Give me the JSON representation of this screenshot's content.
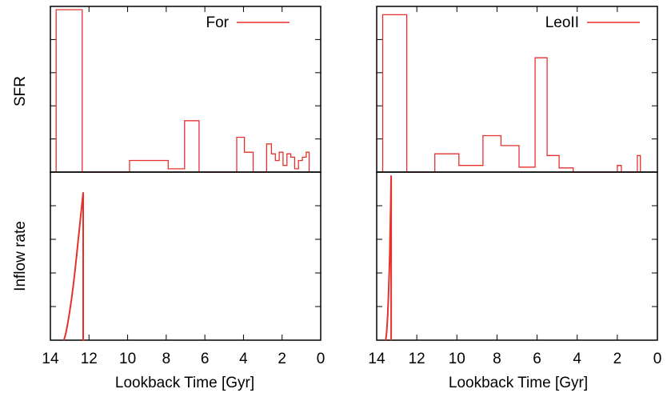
{
  "chart_data": [
    {
      "type": "line",
      "panel": "For SFR",
      "legend": "For",
      "legend_position": "top-right",
      "ylabel": "SFR",
      "xlim": [
        14,
        0
      ],
      "x_reversed": true,
      "y_tick_labels_shown": false,
      "ylim": [
        0,
        1
      ],
      "color": "#e8302b",
      "x": [
        13.7,
        13.7,
        12.35,
        12.35,
        9.9,
        9.9,
        7.9,
        7.9,
        7.05,
        7.05,
        6.3,
        6.3,
        4.35,
        4.35,
        3.95,
        3.95,
        3.5,
        3.5,
        2.8,
        2.8,
        2.55,
        2.55,
        2.35,
        2.35,
        2.15,
        2.15,
        1.95,
        1.95,
        1.75,
        1.75,
        1.55,
        1.55,
        1.35,
        1.35,
        1.15,
        1.15,
        0.95,
        0.95,
        0.75,
        0.75,
        0.6,
        0.6
      ],
      "y": [
        0,
        0.98,
        0.98,
        0,
        0,
        0.07,
        0.07,
        0.02,
        0.02,
        0.31,
        0.31,
        0,
        0,
        0.21,
        0.21,
        0.12,
        0.12,
        0,
        0,
        0.17,
        0.17,
        0.11,
        0.11,
        0.07,
        0.07,
        0.12,
        0.12,
        0.04,
        0.04,
        0.11,
        0.11,
        0.09,
        0.09,
        0.02,
        0.02,
        0.07,
        0.07,
        0.09,
        0.09,
        0.12,
        0.12,
        0
      ]
    },
    {
      "type": "line",
      "panel": "LeoII SFR",
      "legend": "LeoII",
      "legend_position": "top-right",
      "xlim": [
        14,
        0
      ],
      "x_reversed": true,
      "y_tick_labels_shown": false,
      "ylim": [
        0,
        1
      ],
      "color": "#e8302b",
      "x": [
        13.7,
        13.7,
        12.5,
        12.5,
        11.1,
        11.1,
        9.9,
        9.9,
        8.7,
        8.7,
        7.8,
        7.8,
        6.9,
        6.9,
        6.1,
        6.1,
        5.5,
        5.5,
        4.9,
        4.9,
        4.2,
        4.2,
        2.0,
        2.0,
        1.8,
        1.8,
        1.0,
        1.0,
        0.85,
        0.85
      ],
      "y": [
        0,
        0.95,
        0.95,
        0,
        0,
        0.11,
        0.11,
        0.04,
        0.04,
        0.22,
        0.22,
        0.16,
        0.16,
        0.03,
        0.03,
        0.69,
        0.69,
        0.1,
        0.1,
        0.025,
        0.025,
        0,
        0,
        0.04,
        0.04,
        0,
        0,
        0.1,
        0.1,
        0
      ]
    },
    {
      "type": "line",
      "panel": "For Inflow rate",
      "ylabel": "Inflow rate",
      "xlabel": "Lookback Time [Gyr]",
      "x_tick_labels": [
        "14",
        "12",
        "10",
        "8",
        "6",
        "4",
        "2",
        "0"
      ],
      "x_ticks": [
        14,
        12,
        10,
        8,
        6,
        4,
        2,
        0
      ],
      "xlim": [
        14,
        0
      ],
      "x_reversed": true,
      "y_tick_labels_shown": false,
      "ylim": [
        0,
        1
      ],
      "color": "#e8302b",
      "x": [
        13.3,
        13.2,
        13.1,
        13.0,
        12.9,
        12.8,
        12.7,
        12.6,
        12.5,
        12.4,
        12.3,
        12.3,
        12.25
      ],
      "y": [
        0.0,
        0.04,
        0.1,
        0.17,
        0.25,
        0.34,
        0.44,
        0.55,
        0.66,
        0.77,
        0.88,
        0.0,
        0.0
      ]
    },
    {
      "type": "line",
      "panel": "LeoII Inflow rate",
      "xlabel": "Lookback Time [Gyr]",
      "x_tick_labels": [
        "14",
        "12",
        "10",
        "8",
        "6",
        "4",
        "2",
        "0"
      ],
      "x_ticks": [
        14,
        12,
        10,
        8,
        6,
        4,
        2,
        0
      ],
      "xlim": [
        14,
        0
      ],
      "x_reversed": true,
      "y_tick_labels_shown": false,
      "ylim": [
        0,
        1
      ],
      "color": "#e8302b",
      "x": [
        13.55,
        13.5,
        13.45,
        13.4,
        13.35,
        13.3,
        13.28,
        13.28
      ],
      "y": [
        0.0,
        0.05,
        0.15,
        0.3,
        0.5,
        0.8,
        0.98,
        0.0
      ]
    }
  ]
}
